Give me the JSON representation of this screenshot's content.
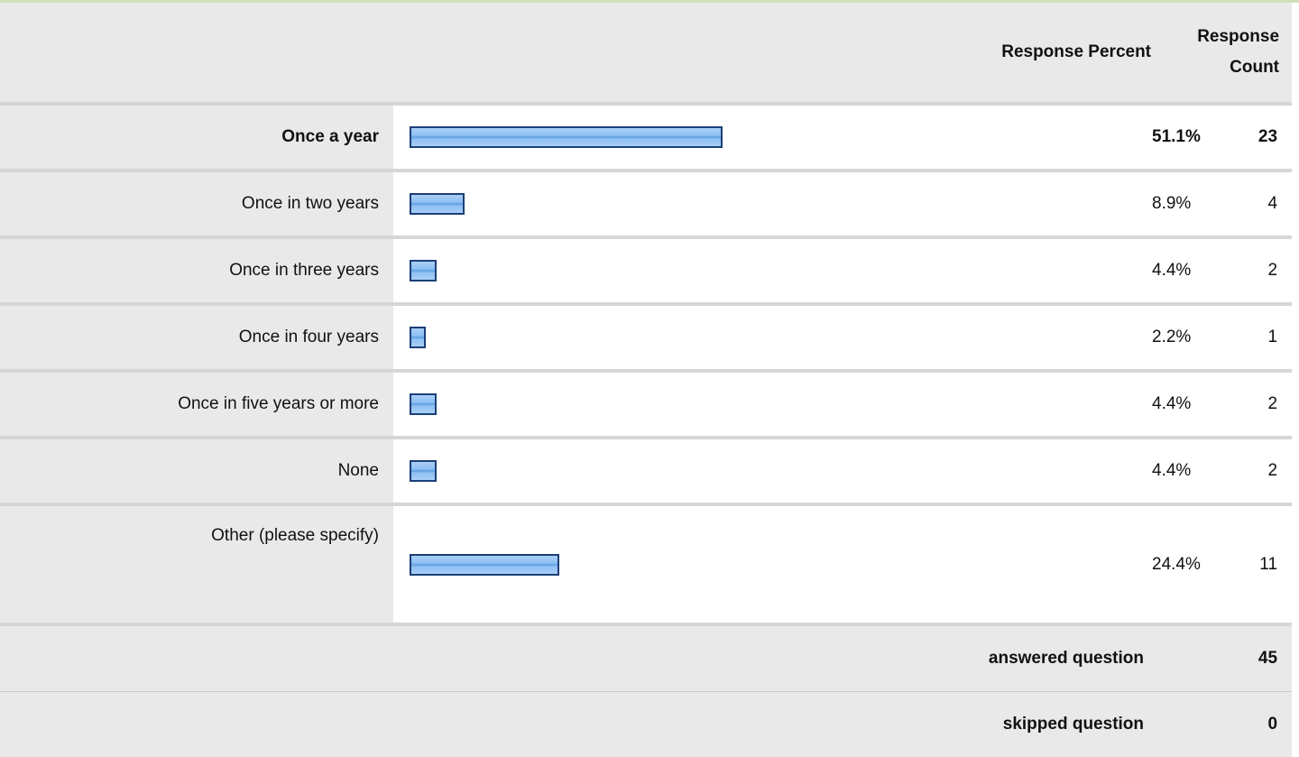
{
  "header": {
    "response_percent": "Response Percent",
    "response_count": "Response Count"
  },
  "chart_data": {
    "type": "table",
    "categories": [
      "Once a year",
      "Once in two years",
      "Once in three years",
      "Once in four years",
      "Once in five years or more",
      "None",
      "Other (please specify)"
    ],
    "percent_labels": [
      "51.1%",
      "8.9%",
      "4.4%",
      "2.2%",
      "4.4%",
      "4.4%",
      "24.4%"
    ],
    "percent_values": [
      51.1,
      8.9,
      4.4,
      2.2,
      4.4,
      4.4,
      24.4
    ],
    "counts": [
      "23",
      "4",
      "2",
      "1",
      "2",
      "2",
      "11"
    ]
  },
  "summary": {
    "answered_label": "answered question",
    "answered_value": "45",
    "skipped_label": "skipped question",
    "skipped_value": "0"
  },
  "colors": {
    "bar_fill": "#8fc0f3",
    "bar_border": "#1c3f76",
    "row_bg": "#e9e9e9",
    "top_line": "#cfe0b8"
  }
}
